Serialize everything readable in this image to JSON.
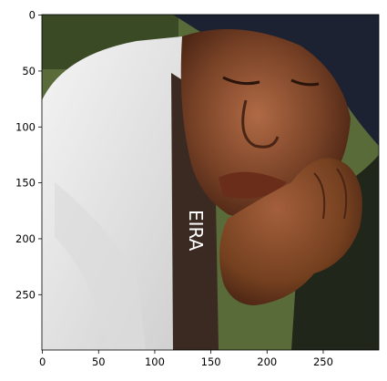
{
  "figure": {
    "image_subject": "photo-portrait",
    "image_size": [
      300,
      300
    ],
    "x_ticks": [
      0,
      50,
      100,
      150,
      200,
      250
    ],
    "y_ticks": [
      0,
      50,
      100,
      150,
      200,
      250
    ],
    "shirt_text": "EIRA",
    "colors": {
      "skin": "#7a4327",
      "skin_highlight": "#b06a45",
      "skin_shadow": "#4a2414",
      "shirt": "#efefef",
      "shirt_shade": "#cfcfcf",
      "headscarf": "#1c2232",
      "strap": "#3b2a22",
      "background": "#5a6b3a"
    }
  }
}
